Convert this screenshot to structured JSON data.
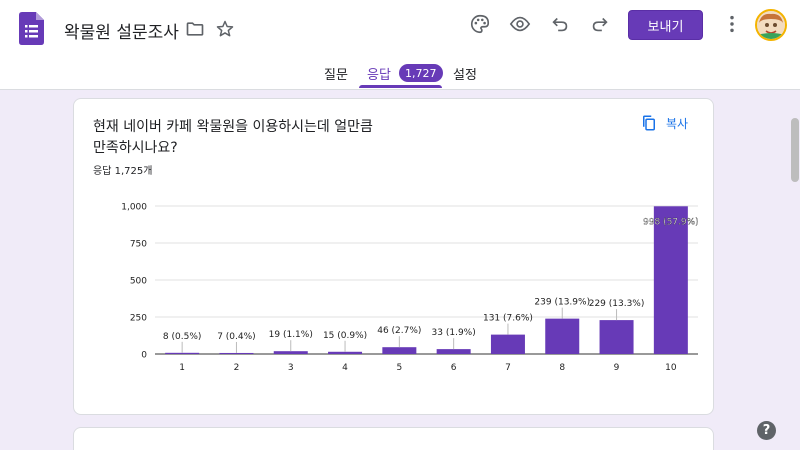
{
  "header": {
    "title": "왁물원 설문조사",
    "send_label": "보내기",
    "icons": [
      "forms-icon",
      "folder-icon",
      "star-icon",
      "palette-icon",
      "preview-icon",
      "undo-icon",
      "redo-icon",
      "more-icon"
    ]
  },
  "tabs": [
    {
      "label": "질문",
      "active": false
    },
    {
      "label": "응답",
      "active": true,
      "badge": "1,727"
    },
    {
      "label": "설정",
      "active": false
    }
  ],
  "question": {
    "title_line1": "현재 네이버 카페 왁물원을 이용하시는데 얼만큼",
    "title_line2": "만족하시나요?",
    "response_count": "응답 1,725개",
    "copy_label": "복사"
  },
  "colors": {
    "accent": "#673ab7",
    "link": "#1a73e8",
    "background": "#f0ebf8"
  },
  "chart_data": {
    "type": "bar",
    "categories": [
      "1",
      "2",
      "3",
      "4",
      "5",
      "6",
      "7",
      "8",
      "9",
      "10"
    ],
    "values": [
      8,
      7,
      19,
      15,
      46,
      33,
      131,
      239,
      229,
      998
    ],
    "labels": [
      "8 (0.5%)",
      "7 (0.4%)",
      "19 (1.1%)",
      "15 (0.9%)",
      "46 (2.7%)",
      "33 (1.9%)",
      "131 (7.6%)",
      "239 (13.9%)",
      "229 (13.3%)",
      "998 (57.9%)"
    ],
    "yticks": [
      "0",
      "250",
      "500",
      "750",
      "1,000"
    ],
    "ytick_values": [
      0,
      250,
      500,
      750,
      1000
    ],
    "ylim": [
      0,
      1000
    ],
    "grid": true,
    "color": "#673ab7"
  }
}
